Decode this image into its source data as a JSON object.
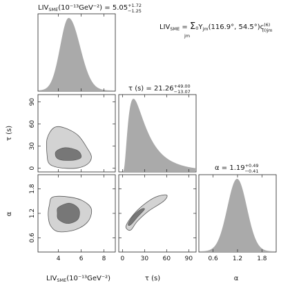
{
  "model": {
    "prefix": "LIV",
    "prefix_sub": "SME",
    "eq": " = ",
    "sigma": "Σ",
    "sigma_sub": "jm",
    "sub0": "0",
    "term": "Y",
    "term_sub": "jm",
    "args": "(116.9°, 54.5°)",
    "coef": "c",
    "coef_sup": "(6)",
    "coef_sub": "(I)jm"
  },
  "chart_data": {
    "type": "corner",
    "parameters": [
      {
        "name": "LIV_SME",
        "unit": "(10⁻¹³GeV⁻²)",
        "median": 5.05,
        "err_plus": 1.72,
        "err_minus": 1.25,
        "range": [
          2.2,
          9.0
        ],
        "ticks": [
          "4",
          "6",
          "8"
        ],
        "tick_values": [
          4,
          6,
          8
        ],
        "title": {
          "lhs": "LIV",
          "lhs_sub": "SME",
          "unit": "(10⁻¹³GeV⁻²)",
          "eq": " = ",
          "value": "5.05",
          "plus": "+1.72",
          "minus": "−1.25"
        },
        "axis_label": {
          "main": "LIV",
          "sub": "SME",
          "unit": "(10⁻¹³GeV⁻²)"
        }
      },
      {
        "name": "tau",
        "unit": "(s)",
        "median": 21.26,
        "err_plus": 49.0,
        "err_minus": 13.07,
        "range": [
          -5,
          100
        ],
        "ticks": [
          "0",
          "30",
          "60",
          "90"
        ],
        "tick_values": [
          0,
          30,
          60,
          90
        ],
        "title": {
          "lhs": "τ (s)",
          "eq": " = ",
          "value": "21.26",
          "plus": "+49.00",
          "minus": "−13.07"
        },
        "axis_label": {
          "main": "τ (s)"
        }
      },
      {
        "name": "alpha",
        "unit": "",
        "median": 1.19,
        "err_plus": 0.49,
        "err_minus": 0.41,
        "range": [
          0.25,
          2.15
        ],
        "ticks": [
          "0.6",
          "1.2",
          "1.8"
        ],
        "tick_values": [
          0.6,
          1.2,
          1.8
        ],
        "title": {
          "lhs": "α",
          "eq": " = ",
          "value": "1.19",
          "plus": "+0.49",
          "minus": "−0.41"
        },
        "axis_label": {
          "main": "α"
        }
      }
    ],
    "marginals": [
      {
        "param": "LIV_SME",
        "shape": "skewed-gaussian",
        "mode": 4.9,
        "sigma_left": 0.75,
        "sigma_right": 1.0
      },
      {
        "param": "tau",
        "shape": "lognormal",
        "mode": 15,
        "log_sigma": 0.75
      },
      {
        "param": "alpha",
        "shape": "gaussian",
        "mode": 1.19,
        "sigma": 0.24
      }
    ],
    "contours_2d": [
      {
        "x": "LIV_SME",
        "y": "tau",
        "outer": [
          [
            3.0,
            40
          ],
          [
            3.6,
            55
          ],
          [
            4.5,
            55
          ],
          [
            5.7,
            45
          ],
          [
            6.5,
            28
          ],
          [
            6.9,
            15
          ],
          [
            6.5,
            5
          ],
          [
            5.5,
            0
          ],
          [
            4.0,
            1
          ],
          [
            3.2,
            6
          ],
          [
            3.0,
            18
          ]
        ],
        "inner": [
          [
            3.8,
            23
          ],
          [
            4.6,
            28
          ],
          [
            5.7,
            24
          ],
          [
            6.0,
            15
          ],
          [
            5.4,
            11
          ],
          [
            4.3,
            11
          ],
          [
            3.8,
            15
          ]
        ]
      },
      {
        "x": "tau",
        "y": "alpha",
        "outer": [
          [
            5,
            0.9
          ],
          [
            14,
            1.15
          ],
          [
            28,
            1.4
          ],
          [
            45,
            1.6
          ],
          [
            60,
            1.65
          ],
          [
            56,
            1.5
          ],
          [
            35,
            1.25
          ],
          [
            20,
            1.0
          ],
          [
            12,
            0.8
          ],
          [
            7,
            0.8
          ]
        ],
        "inner": [
          [
            8,
            0.95
          ],
          [
            15,
            1.15
          ],
          [
            25,
            1.3
          ],
          [
            30,
            1.3
          ],
          [
            20,
            1.1
          ],
          [
            13,
            0.95
          ],
          [
            9,
            0.9
          ]
        ]
      },
      {
        "x": "LIV_SME",
        "y": "alpha",
        "outer": [
          [
            3.2,
            1.4
          ],
          [
            3.5,
            1.6
          ],
          [
            5.0,
            1.6
          ],
          [
            6.2,
            1.5
          ],
          [
            6.9,
            1.3
          ],
          [
            6.6,
            1.0
          ],
          [
            5.5,
            0.8
          ],
          [
            4.0,
            0.75
          ],
          [
            3.3,
            0.9
          ],
          [
            3.1,
            1.15
          ]
        ],
        "inner": [
          [
            4.0,
            1.35
          ],
          [
            5.0,
            1.45
          ],
          [
            5.8,
            1.3
          ],
          [
            5.7,
            1.05
          ],
          [
            4.8,
            0.95
          ],
          [
            4.0,
            1.05
          ],
          [
            3.9,
            1.2
          ]
        ]
      }
    ],
    "colors": {
      "fill": "#aaaaaa",
      "outer_fill": "#d3d3d3",
      "inner_fill": "#777777",
      "edge": "#555555",
      "axis": "#222222"
    }
  }
}
